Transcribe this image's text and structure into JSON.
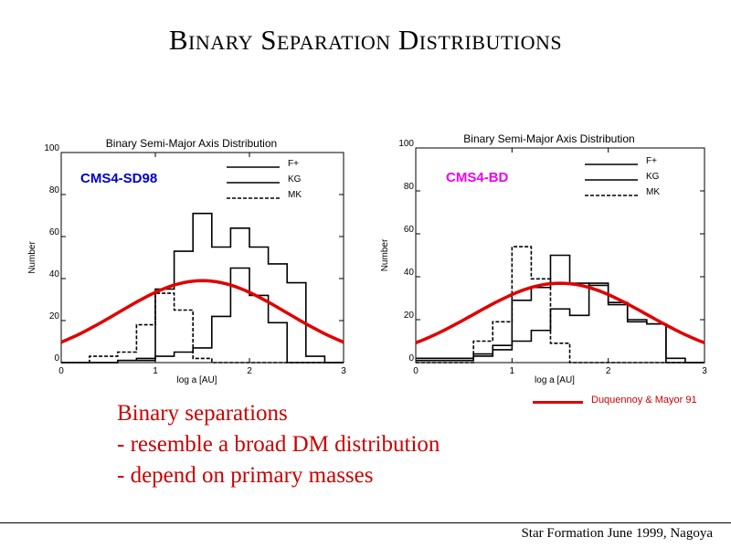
{
  "slide": {
    "title": "Binary Separation Distributions",
    "bullets": [
      "Binary separations",
      "- resemble a broad DM distribution",
      "- depend on primary masses"
    ],
    "footer": "Star Formation June 1999, Nagoya",
    "dm_legend": "Duquennoy & Mayor 91"
  },
  "colors": {
    "dm_curve": "#e00000",
    "cms4_sd98": "#0000cc",
    "cms4_bd": "#ee00ee"
  },
  "chart_data": [
    {
      "type": "line",
      "title": "Binary Semi-Major Axis Distribution",
      "tag": "CMS4-SD98",
      "xlabel": "log a [AU]",
      "ylabel": "Number",
      "xlim": [
        0,
        3
      ],
      "ylim": [
        0,
        100
      ],
      "xticks": [
        0,
        1,
        2,
        3
      ],
      "yticks": [
        0,
        20,
        40,
        60,
        80,
        100
      ],
      "legend": [
        "F+",
        "KG",
        "MK"
      ],
      "legend_position": "top-right",
      "series": [
        {
          "name": "F+",
          "style": "solid",
          "bins": [
            [
              0,
              0.4,
              0
            ],
            [
              0.4,
              0.6,
              0
            ],
            [
              0.6,
              0.8,
              1
            ],
            [
              0.8,
              1.0,
              1
            ],
            [
              1.0,
              1.2,
              3
            ],
            [
              1.2,
              1.4,
              5
            ],
            [
              1.4,
              1.6,
              7
            ],
            [
              1.6,
              1.8,
              22
            ],
            [
              1.8,
              2.0,
              45
            ],
            [
              2.0,
              2.2,
              32
            ],
            [
              2.2,
              2.4,
              19
            ],
            [
              2.4,
              2.6,
              0
            ],
            [
              2.6,
              3.0,
              0
            ]
          ]
        },
        {
          "name": "KG",
          "style": "solid",
          "bins": [
            [
              0,
              0.6,
              0
            ],
            [
              0.6,
              0.8,
              1
            ],
            [
              0.8,
              1.0,
              2
            ],
            [
              1.0,
              1.2,
              35
            ],
            [
              1.2,
              1.4,
              53
            ],
            [
              1.4,
              1.6,
              71
            ],
            [
              1.6,
              1.8,
              55
            ],
            [
              1.8,
              2.0,
              64
            ],
            [
              2.0,
              2.2,
              55
            ],
            [
              2.2,
              2.4,
              47
            ],
            [
              2.4,
              2.6,
              38
            ],
            [
              2.6,
              2.8,
              3
            ],
            [
              2.8,
              3.0,
              0
            ]
          ]
        },
        {
          "name": "MK",
          "style": "dashed",
          "bins": [
            [
              0,
              0.3,
              0
            ],
            [
              0.3,
              0.6,
              3
            ],
            [
              0.6,
              0.8,
              5
            ],
            [
              0.8,
              1.0,
              18
            ],
            [
              1.0,
              1.2,
              33
            ],
            [
              1.2,
              1.4,
              25
            ],
            [
              1.4,
              1.6,
              2
            ],
            [
              1.6,
              3.0,
              0
            ]
          ]
        }
      ],
      "curve": {
        "name": "Duquennoy & Mayor 91",
        "peak_x": 1.5,
        "peak_y": 39,
        "sigma": 0.9
      }
    },
    {
      "type": "line",
      "title": "Binary Semi-Major Axis Distribution",
      "tag": "CMS4-BD",
      "xlabel": "log a [AU]",
      "ylabel": "Number",
      "xlim": [
        0,
        3
      ],
      "ylim": [
        0,
        100
      ],
      "xticks": [
        0,
        1,
        2,
        3
      ],
      "yticks": [
        0,
        20,
        40,
        60,
        80,
        100
      ],
      "legend": [
        "F+",
        "KG",
        "MK"
      ],
      "legend_position": "top-right",
      "series": [
        {
          "name": "F+",
          "style": "solid",
          "bins": [
            [
              0,
              0.6,
              1
            ],
            [
              0.6,
              0.8,
              3
            ],
            [
              0.8,
              1.0,
              6
            ],
            [
              1.0,
              1.2,
              10
            ],
            [
              1.2,
              1.4,
              15
            ],
            [
              1.4,
              1.6,
              25
            ],
            [
              1.6,
              1.8,
              22
            ],
            [
              1.8,
              2.0,
              37
            ],
            [
              2.0,
              2.2,
              27
            ],
            [
              2.2,
              2.4,
              19
            ],
            [
              2.4,
              2.6,
              18
            ],
            [
              2.6,
              2.8,
              2
            ],
            [
              2.8,
              3.0,
              0
            ]
          ]
        },
        {
          "name": "KG",
          "style": "solid",
          "bins": [
            [
              0,
              0.6,
              2
            ],
            [
              0.6,
              0.8,
              4
            ],
            [
              0.8,
              1.0,
              8
            ],
            [
              1.0,
              1.2,
              29
            ],
            [
              1.2,
              1.4,
              35
            ],
            [
              1.4,
              1.6,
              50
            ],
            [
              1.6,
              1.8,
              37
            ],
            [
              1.8,
              2.0,
              36
            ],
            [
              2.0,
              2.2,
              28
            ],
            [
              2.2,
              2.4,
              20
            ],
            [
              2.4,
              2.6,
              18
            ],
            [
              2.6,
              3.0,
              0
            ]
          ]
        },
        {
          "name": "MK",
          "style": "dashed",
          "bins": [
            [
              0,
              0.6,
              0
            ],
            [
              0.6,
              0.8,
              10
            ],
            [
              0.8,
              1.0,
              19
            ],
            [
              1.0,
              1.2,
              54
            ],
            [
              1.2,
              1.4,
              39
            ],
            [
              1.4,
              1.6,
              9
            ],
            [
              1.6,
              3.0,
              0
            ]
          ]
        }
      ],
      "curve": {
        "name": "Duquennoy & Mayor 91",
        "peak_x": 1.5,
        "peak_y": 37,
        "sigma": 0.9
      }
    }
  ]
}
